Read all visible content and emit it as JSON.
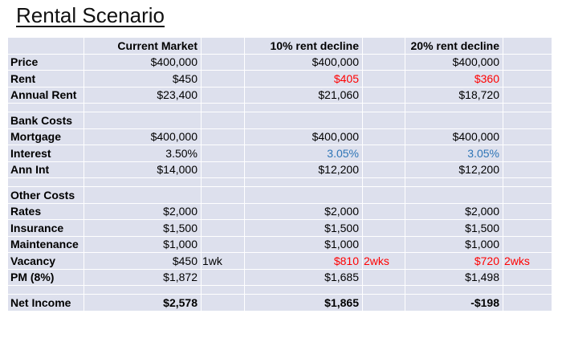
{
  "title": "Rental Scenario",
  "colors": {
    "cell_bg": "#dde0ed",
    "gridline": "#ffffff",
    "red": "#ff0000",
    "blue": "#2e75b6",
    "black": "#000000"
  },
  "table": {
    "headers": {
      "label": "",
      "col1": "Current Market",
      "col2": "10% rent decline",
      "col3": "20% rent decline"
    },
    "rows": [
      {
        "label": "Price",
        "cells": [
          {
            "text": "$400,000"
          },
          {
            "text": ""
          },
          {
            "text": "$400,000"
          },
          {
            "text": ""
          },
          {
            "text": "$400,000"
          },
          {
            "text": ""
          }
        ]
      },
      {
        "label": "Rent",
        "cells": [
          {
            "text": "$450"
          },
          {
            "text": ""
          },
          {
            "text": "$405",
            "color": "red"
          },
          {
            "text": ""
          },
          {
            "text": "$360",
            "color": "red"
          },
          {
            "text": ""
          }
        ]
      },
      {
        "label": "Annual Rent",
        "cells": [
          {
            "text": "$23,400"
          },
          {
            "text": ""
          },
          {
            "text": "$21,060"
          },
          {
            "text": ""
          },
          {
            "text": "$18,720"
          },
          {
            "text": ""
          }
        ]
      },
      {
        "blank": true,
        "label": "",
        "cells": [
          {
            "text": ""
          },
          {
            "text": ""
          },
          {
            "text": ""
          },
          {
            "text": ""
          },
          {
            "text": ""
          },
          {
            "text": ""
          }
        ]
      },
      {
        "label": "Bank Costs",
        "cells": [
          {
            "text": ""
          },
          {
            "text": ""
          },
          {
            "text": ""
          },
          {
            "text": ""
          },
          {
            "text": ""
          },
          {
            "text": ""
          }
        ]
      },
      {
        "label": "Mortgage",
        "cells": [
          {
            "text": "$400,000"
          },
          {
            "text": ""
          },
          {
            "text": "$400,000"
          },
          {
            "text": ""
          },
          {
            "text": "$400,000"
          },
          {
            "text": ""
          }
        ]
      },
      {
        "label": "Interest",
        "cells": [
          {
            "text": "3.50%"
          },
          {
            "text": ""
          },
          {
            "text": "3.05%",
            "color": "blue"
          },
          {
            "text": ""
          },
          {
            "text": "3.05%",
            "color": "blue"
          },
          {
            "text": ""
          }
        ]
      },
      {
        "label": "Ann Int",
        "cells": [
          {
            "text": "$14,000"
          },
          {
            "text": ""
          },
          {
            "text": "$12,200"
          },
          {
            "text": ""
          },
          {
            "text": "$12,200"
          },
          {
            "text": ""
          }
        ]
      },
      {
        "blank": true,
        "label": "",
        "cells": [
          {
            "text": ""
          },
          {
            "text": ""
          },
          {
            "text": ""
          },
          {
            "text": ""
          },
          {
            "text": ""
          },
          {
            "text": ""
          }
        ]
      },
      {
        "label": "Other Costs",
        "cells": [
          {
            "text": ""
          },
          {
            "text": ""
          },
          {
            "text": ""
          },
          {
            "text": ""
          },
          {
            "text": ""
          },
          {
            "text": ""
          }
        ]
      },
      {
        "label": "Rates",
        "cells": [
          {
            "text": "$2,000"
          },
          {
            "text": ""
          },
          {
            "text": "$2,000"
          },
          {
            "text": ""
          },
          {
            "text": "$2,000"
          },
          {
            "text": ""
          }
        ]
      },
      {
        "label": "Insurance",
        "cells": [
          {
            "text": "$1,500"
          },
          {
            "text": ""
          },
          {
            "text": "$1,500"
          },
          {
            "text": ""
          },
          {
            "text": "$1,500"
          },
          {
            "text": ""
          }
        ]
      },
      {
        "label": "Maintenance",
        "cells": [
          {
            "text": "$1,000"
          },
          {
            "text": ""
          },
          {
            "text": "$1,000"
          },
          {
            "text": ""
          },
          {
            "text": "$1,000"
          },
          {
            "text": ""
          }
        ]
      },
      {
        "label": "Vacancy",
        "cells": [
          {
            "text": "$450"
          },
          {
            "text": "1wk"
          },
          {
            "text": "$810",
            "color": "red"
          },
          {
            "text": "2wks",
            "color": "red"
          },
          {
            "text": "$720",
            "color": "red"
          },
          {
            "text": "2wks",
            "color": "red"
          }
        ]
      },
      {
        "label": "PM (8%)",
        "cells": [
          {
            "text": "$1,872"
          },
          {
            "text": ""
          },
          {
            "text": "$1,685"
          },
          {
            "text": ""
          },
          {
            "text": "$1,498"
          },
          {
            "text": ""
          }
        ]
      },
      {
        "blank": true,
        "label": "",
        "cells": [
          {
            "text": ""
          },
          {
            "text": ""
          },
          {
            "text": ""
          },
          {
            "text": ""
          },
          {
            "text": ""
          },
          {
            "text": ""
          }
        ]
      },
      {
        "label": "Net Income",
        "totals": true,
        "cells": [
          {
            "text": "$2,578"
          },
          {
            "text": ""
          },
          {
            "text": "$1,865"
          },
          {
            "text": ""
          },
          {
            "text": "-$198"
          },
          {
            "text": ""
          }
        ]
      }
    ]
  }
}
